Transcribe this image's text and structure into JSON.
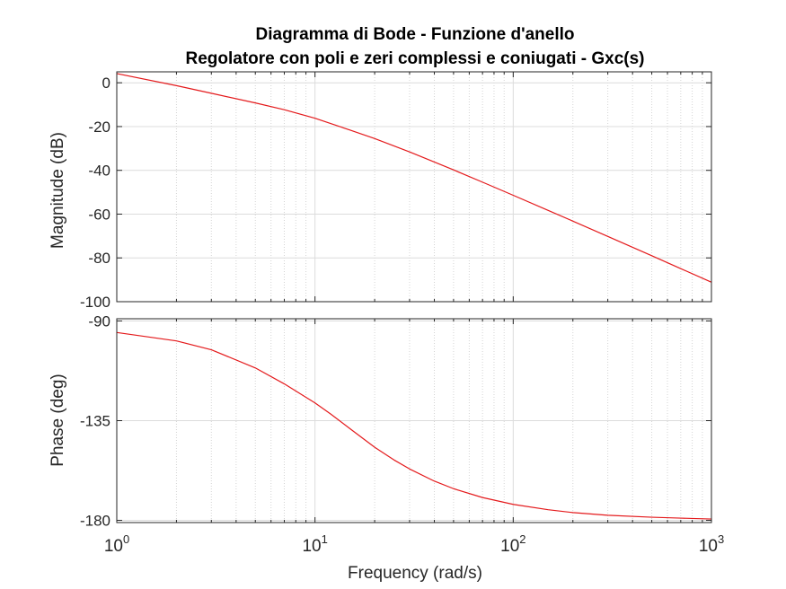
{
  "chart_data": {
    "type": "line",
    "title_line1": "Diagramma di Bode - Funzione d'anello",
    "title_line2": "Regolatore con poli e zeri complessi e coniugati - Gxc(s)",
    "xlabel": "Frequency  (rad/s)",
    "x_scale": "log",
    "xlim": [
      1,
      1000
    ],
    "x_ticks": [
      {
        "base": "10",
        "exp": "0",
        "value": 1
      },
      {
        "base": "10",
        "exp": "1",
        "value": 10
      },
      {
        "base": "10",
        "exp": "2",
        "value": 100
      },
      {
        "base": "10",
        "exp": "3",
        "value": 1000
      }
    ],
    "grid": true,
    "line_color": "#e41a1c",
    "magnitude": {
      "ylabel": "Magnitude (dB)",
      "ylim": [
        -100,
        5
      ],
      "y_ticks": [
        "0",
        "-20",
        "-40",
        "-60",
        "-80",
        "-100"
      ],
      "y_tick_values": [
        0,
        -20,
        -40,
        -60,
        -80,
        -100
      ],
      "x": [
        1,
        2,
        3,
        5,
        7,
        10,
        15,
        20,
        30,
        50,
        70,
        100,
        150,
        200,
        300,
        500,
        700,
        1000
      ],
      "y": [
        4.2,
        -1.3,
        -4.8,
        -9.2,
        -12.3,
        -16.2,
        -21.6,
        -25.5,
        -31.6,
        -39.8,
        -45.4,
        -51.4,
        -58.3,
        -63.2,
        -70.2,
        -79.0,
        -84.9,
        -91.1
      ]
    },
    "phase": {
      "ylabel": "Phase (deg)",
      "ylim": [
        -181,
        -89
      ],
      "y_ticks": [
        "-90",
        "-135",
        "-180"
      ],
      "y_tick_values": [
        -90,
        -135,
        -180
      ],
      "x": [
        1,
        2,
        3,
        5,
        7,
        10,
        12,
        15,
        20,
        25,
        30,
        40,
        50,
        70,
        100,
        150,
        200,
        300,
        500,
        700,
        1000
      ],
      "y": [
        -95.2,
        -99.0,
        -103.0,
        -111.2,
        -118.4,
        -127.0,
        -132.0,
        -138.6,
        -147.0,
        -152.7,
        -156.8,
        -162.3,
        -165.7,
        -169.7,
        -172.8,
        -175.2,
        -176.5,
        -177.7,
        -178.6,
        -179.0,
        -179.4
      ]
    }
  }
}
